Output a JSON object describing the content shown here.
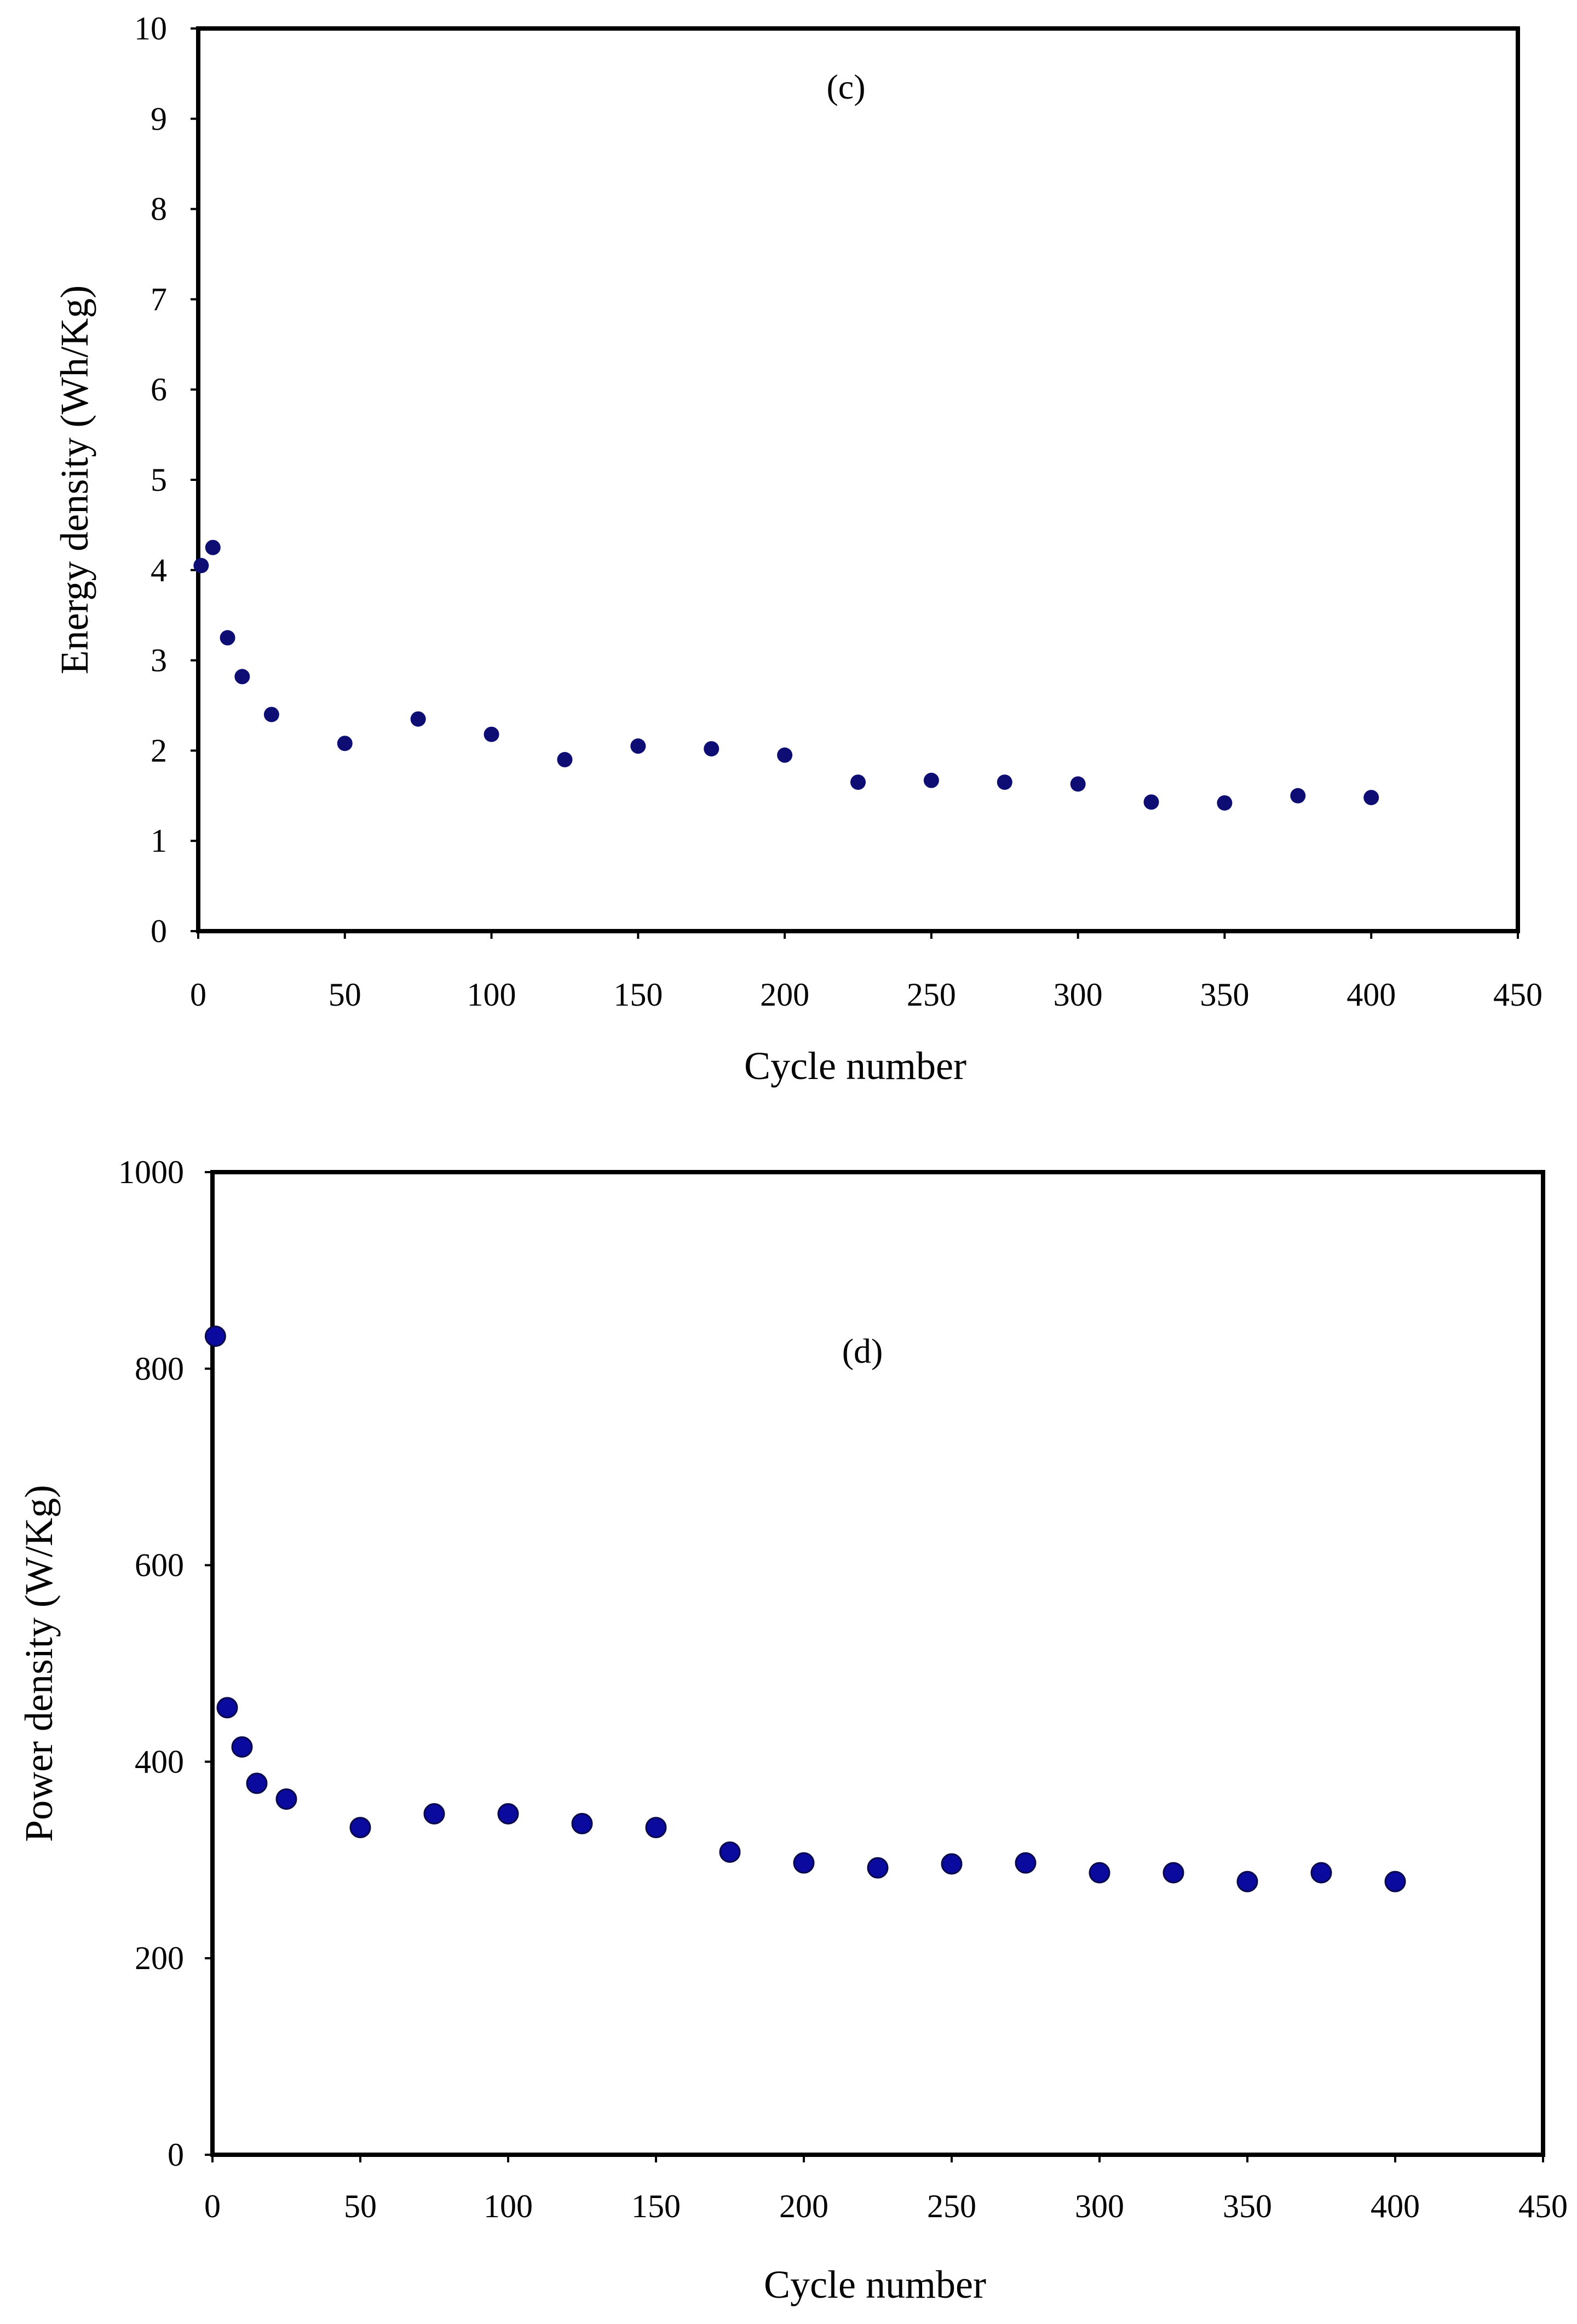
{
  "chart_data": [
    {
      "type": "scatter",
      "panel_label": "(c)",
      "xlabel": "Cycle number",
      "ylabel": "Energy density (Wh/Kg)",
      "xlim": [
        0,
        450
      ],
      "ylim": [
        0,
        10
      ],
      "xticks": [
        0,
        50,
        100,
        150,
        200,
        250,
        300,
        350,
        400,
        450
      ],
      "yticks": [
        0,
        1,
        2,
        3,
        4,
        5,
        6,
        7,
        8,
        9,
        10
      ],
      "grid": false,
      "marker_color": "#0d0d73",
      "series": [
        {
          "name": "Energy density",
          "x": [
            1,
            5,
            10,
            15,
            25,
            50,
            75,
            100,
            125,
            150,
            175,
            200,
            225,
            250,
            275,
            300,
            325,
            350,
            375,
            400
          ],
          "y": [
            4.05,
            4.25,
            3.25,
            2.82,
            2.4,
            2.08,
            2.35,
            2.18,
            1.9,
            2.05,
            2.02,
            1.95,
            1.65,
            1.67,
            1.65,
            1.63,
            1.43,
            1.42,
            1.5,
            1.48
          ]
        }
      ]
    },
    {
      "type": "scatter",
      "panel_label": "(d)",
      "xlabel": "Cycle number",
      "ylabel": "Power density (W/Kg)",
      "xlim": [
        0,
        450
      ],
      "ylim": [
        0,
        1000
      ],
      "xticks": [
        0,
        50,
        100,
        150,
        200,
        250,
        300,
        350,
        400,
        450
      ],
      "yticks": [
        0,
        200,
        400,
        600,
        800,
        1000
      ],
      "grid": false,
      "marker_color": "#0a0a9e",
      "series": [
        {
          "name": "Power density",
          "x": [
            1,
            5,
            10,
            15,
            25,
            50,
            75,
            100,
            125,
            150,
            175,
            200,
            225,
            250,
            275,
            300,
            325,
            350,
            375,
            400
          ],
          "y": [
            833,
            455,
            415,
            378,
            362,
            333,
            347,
            347,
            337,
            333,
            308,
            297,
            292,
            296,
            297,
            287,
            287,
            278,
            287,
            278
          ]
        }
      ]
    }
  ]
}
